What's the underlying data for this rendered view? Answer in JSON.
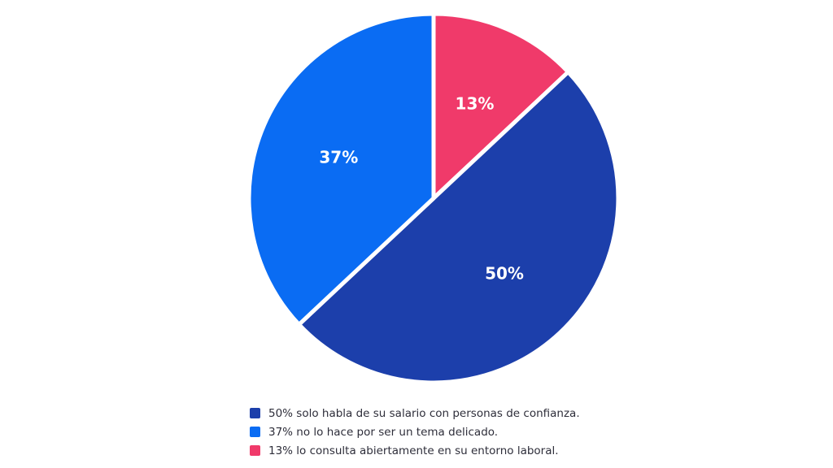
{
  "chart_data": {
    "type": "pie",
    "start": "top",
    "direction": "clockwise",
    "slices": [
      {
        "value": 13,
        "label": "13%",
        "color": "#f03a6a",
        "legend": "13% lo consulta abiertamente en su entorno laboral."
      },
      {
        "value": 50,
        "label": "50%",
        "color": "#1c3fab",
        "legend": "50% solo habla de su salario con personas de confianza."
      },
      {
        "value": 37,
        "label": "37%",
        "color": "#0a6cf3",
        "legend": "37% no lo hace por ser un tema delicado."
      }
    ],
    "legend_order": [
      1,
      2,
      0
    ],
    "legend_placement": "bottom"
  }
}
